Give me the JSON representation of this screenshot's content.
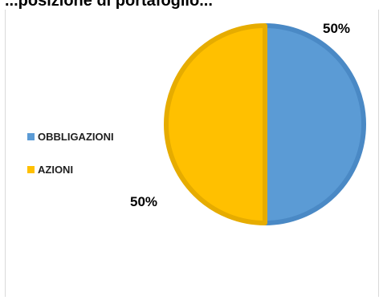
{
  "chart_data": {
    "type": "pie",
    "title": "...posizione di portafoglio...",
    "categories": [
      "OBBLIGAZIONI",
      "AZIONI"
    ],
    "values": [
      50,
      50
    ],
    "value_labels": [
      "50%",
      "50%"
    ],
    "colors": {
      "OBBLIGAZIONI": "#5b9bd5",
      "AZIONI": "#ffc000"
    },
    "edge_colors": {
      "OBBLIGAZIONI": "#4a89c5",
      "AZIONI": "#e6ac00"
    },
    "legend_position": "left"
  }
}
